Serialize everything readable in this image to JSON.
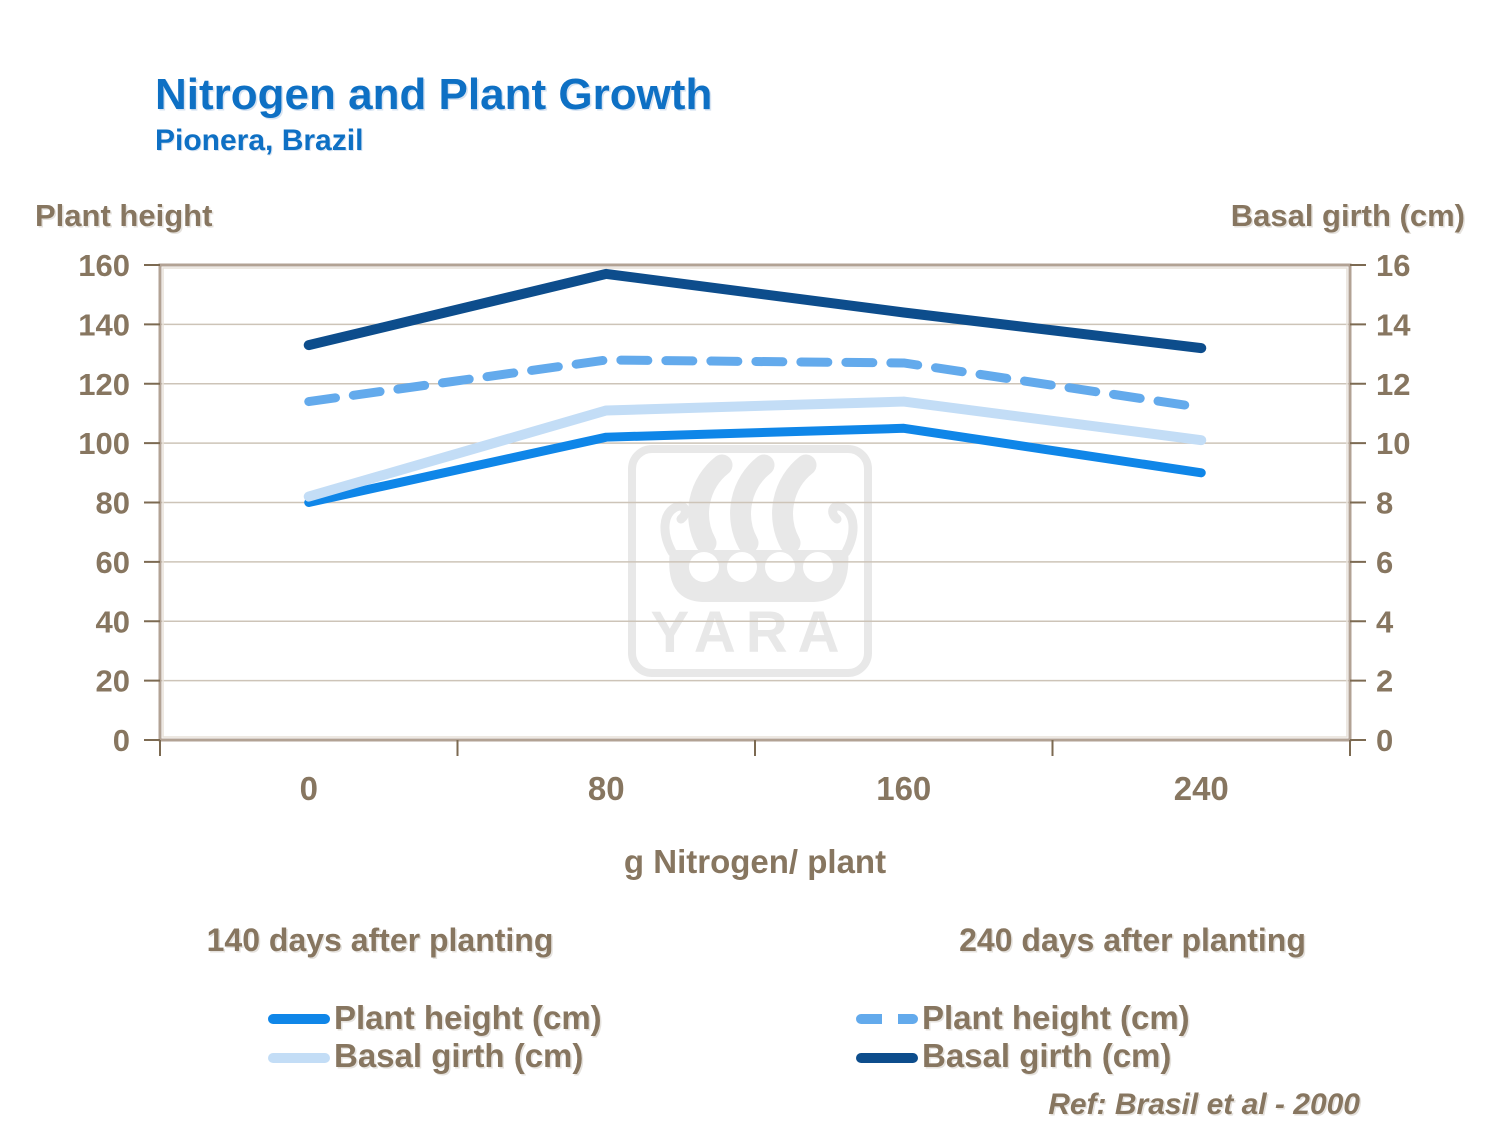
{
  "page": {
    "title": "Nitrogen and Plant Growth",
    "subtitle": "Pionera, Brazil"
  },
  "axes": {
    "left_title": "Plant height",
    "right_title": "Basal girth (cm)",
    "x_title": "g Nitrogen/ plant"
  },
  "chart_data": {
    "type": "line",
    "title": "Nitrogen and Plant Growth",
    "subtitle": "Pionera, Brazil",
    "xlabel": "g Nitrogen/ plant",
    "categories": [
      "0",
      "80",
      "160",
      "240"
    ],
    "left_axis": {
      "title": "Plant height",
      "min": 0,
      "max": 160,
      "step": 20,
      "ticks": [
        "160",
        "140",
        "120",
        "100",
        "80",
        "60",
        "40",
        "20",
        "0"
      ]
    },
    "right_axis": {
      "title": "Basal girth (cm)",
      "min": 0,
      "max": 16,
      "step": 2,
      "ticks": [
        "16",
        "14",
        "12",
        "10",
        "8",
        "6",
        "4",
        "2",
        "0"
      ]
    },
    "grid": true,
    "legend_position": "bottom",
    "series": [
      {
        "name": "140 days after planting - Plant height (cm)",
        "axis": "left",
        "style": "solid",
        "color": "#0f86e8",
        "width": 9,
        "values": [
          80,
          102,
          105,
          90
        ]
      },
      {
        "name": "140 days after planting - Basal girth (cm)",
        "axis": "right",
        "style": "solid",
        "color": "#c3ddf6",
        "width": 10,
        "values": [
          8.2,
          11.1,
          11.4,
          10.1
        ]
      },
      {
        "name": "240 days after planting - Plant height (cm)",
        "axis": "left",
        "style": "dashed",
        "color": "#63aaec",
        "width": 9,
        "values": [
          114,
          128,
          127,
          112
        ]
      },
      {
        "name": "240 days after planting - Basal girth (cm)",
        "axis": "right",
        "style": "solid",
        "color": "#0d4d8c",
        "width": 10,
        "values": [
          13.3,
          15.7,
          14.4,
          13.2
        ]
      }
    ]
  },
  "legend": {
    "groups": [
      {
        "heading": "140 days after planting",
        "items": [
          {
            "label": "Plant height (cm)",
            "style": "solid",
            "color": "#0f86e8"
          },
          {
            "label": "Basal girth (cm)",
            "style": "solid",
            "color": "#c3ddf6"
          }
        ]
      },
      {
        "heading": "240 days after planting",
        "items": [
          {
            "label": "Plant height (cm)",
            "style": "dashed",
            "color": "#63aaec"
          },
          {
            "label": "Basal girth (cm)",
            "style": "solid",
            "color": "#0d4d8c"
          }
        ]
      }
    ]
  },
  "footer": {
    "ref": "Ref: Brasil et al - 2000"
  },
  "watermark": {
    "text": "YARA"
  },
  "colors": {
    "title_blue": "#0e70c4",
    "text_brown": "#877660",
    "plot_border": "#b2a294",
    "plot_border_highlight": "#e7e0d8",
    "gridline": "#cdc4b8",
    "tick": "#7c6a52",
    "watermark_gray": "#e8e8e8",
    "background": "#ffffff"
  }
}
